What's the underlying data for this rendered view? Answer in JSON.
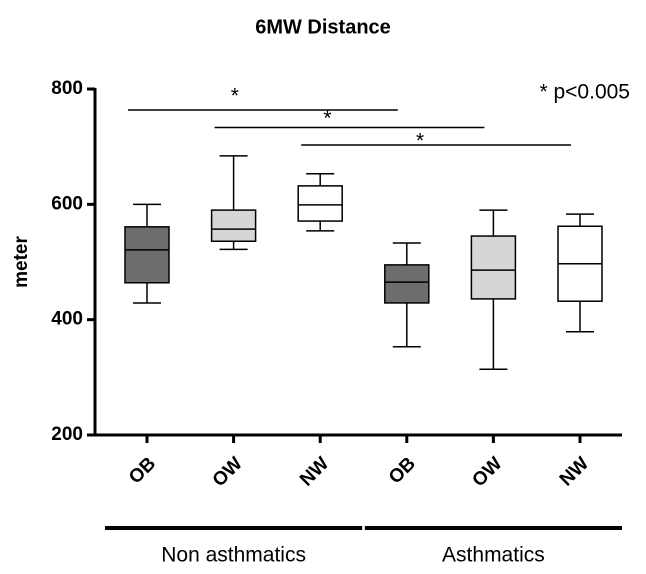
{
  "chart_data": {
    "type": "box",
    "title": "6MW Distance",
    "ylabel": "meter",
    "note": "* p<0.005",
    "categories": [
      "OB",
      "OW",
      "NW",
      "OB",
      "OW",
      "NW"
    ],
    "groups": [
      {
        "name": "Non asthmatics",
        "size": 3
      },
      {
        "name": "Asthmatics",
        "size": 3
      }
    ],
    "boxes": [
      {
        "min": 429,
        "q1": 464,
        "median": 521,
        "q3": 561,
        "max": 600,
        "color": "#6d6d6d"
      },
      {
        "min": 522,
        "q1": 536,
        "median": 557,
        "q3": 590,
        "max": 684,
        "color": "#d6d6d6"
      },
      {
        "min": 554,
        "q1": 571,
        "median": 599,
        "q3": 632,
        "max": 653,
        "color": "#ffffff"
      },
      {
        "min": 353,
        "q1": 429,
        "median": 465,
        "q3": 495,
        "max": 533,
        "color": "#6d6d6d"
      },
      {
        "min": 314,
        "q1": 436,
        "median": 486,
        "q3": 545,
        "max": 590,
        "color": "#d6d6d6"
      },
      {
        "min": 379,
        "q1": 432,
        "median": 497,
        "q3": 562,
        "max": 583,
        "color": "#ffffff"
      }
    ],
    "comparisons": [
      {
        "label": "*",
        "from": 0,
        "to": 3
      },
      {
        "label": "*",
        "from": 1,
        "to": 4
      },
      {
        "label": "*",
        "from": 2,
        "to": 5
      }
    ],
    "ylim": [
      200,
      800
    ],
    "yticks": [
      200,
      400,
      600,
      800
    ]
  }
}
